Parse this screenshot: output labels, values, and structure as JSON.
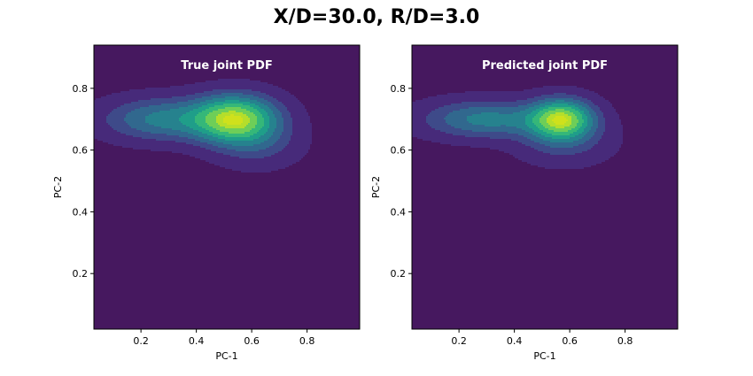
{
  "figure": {
    "suptitle": "X/D=30.0, R/D=3.0"
  },
  "colors": {
    "background": "#46185f",
    "colormap": "viridis",
    "levels": [
      "#472a7a",
      "#3e4a89",
      "#31688e",
      "#26828e",
      "#1f9e89",
      "#35b779",
      "#6ece58",
      "#b5de2b",
      "#cfe11c"
    ]
  },
  "chart_data": [
    {
      "type": "heatmap",
      "subtype": "filled-contour",
      "title": "True joint PDF",
      "xlabel": "PC-1",
      "ylabel": "PC-2",
      "xlim": [
        0.03,
        0.99
      ],
      "ylim": [
        0.02,
        0.94
      ],
      "xticks": [
        0.2,
        0.4,
        0.6,
        0.8
      ],
      "yticks": [
        0.2,
        0.4,
        0.6,
        0.8
      ],
      "grid": false,
      "peak": {
        "x": 0.54,
        "y": 0.7
      },
      "components": [
        {
          "x": 0.54,
          "y": 0.7,
          "sx": 0.1,
          "sy": 0.05,
          "weight": 1.0
        },
        {
          "x": 0.28,
          "y": 0.7,
          "sx": 0.14,
          "sy": 0.045,
          "weight": 0.42
        },
        {
          "x": 0.62,
          "y": 0.62,
          "sx": 0.1,
          "sy": 0.05,
          "weight": 0.18
        }
      ],
      "contour_levels": [
        0.03,
        0.13,
        0.23,
        0.34,
        0.46,
        0.58,
        0.72,
        0.86,
        0.95
      ]
    },
    {
      "type": "heatmap",
      "subtype": "filled-contour",
      "title": "Predicted joint PDF",
      "xlabel": "PC-1",
      "ylabel": "PC-2",
      "xlim": [
        0.03,
        0.99
      ],
      "ylim": [
        0.02,
        0.94
      ],
      "xticks": [
        0.2,
        0.4,
        0.6,
        0.8
      ],
      "yticks": [
        0.2,
        0.4,
        0.6,
        0.8
      ],
      "grid": false,
      "peak": {
        "x": 0.57,
        "y": 0.7
      },
      "components": [
        {
          "x": 0.57,
          "y": 0.7,
          "sx": 0.075,
          "sy": 0.042,
          "weight": 1.0
        },
        {
          "x": 0.3,
          "y": 0.7,
          "sx": 0.15,
          "sy": 0.04,
          "weight": 0.45
        },
        {
          "x": 0.58,
          "y": 0.63,
          "sx": 0.11,
          "sy": 0.05,
          "weight": 0.2
        }
      ],
      "contour_levels": [
        0.03,
        0.13,
        0.23,
        0.34,
        0.46,
        0.58,
        0.72,
        0.86,
        0.95
      ]
    }
  ]
}
